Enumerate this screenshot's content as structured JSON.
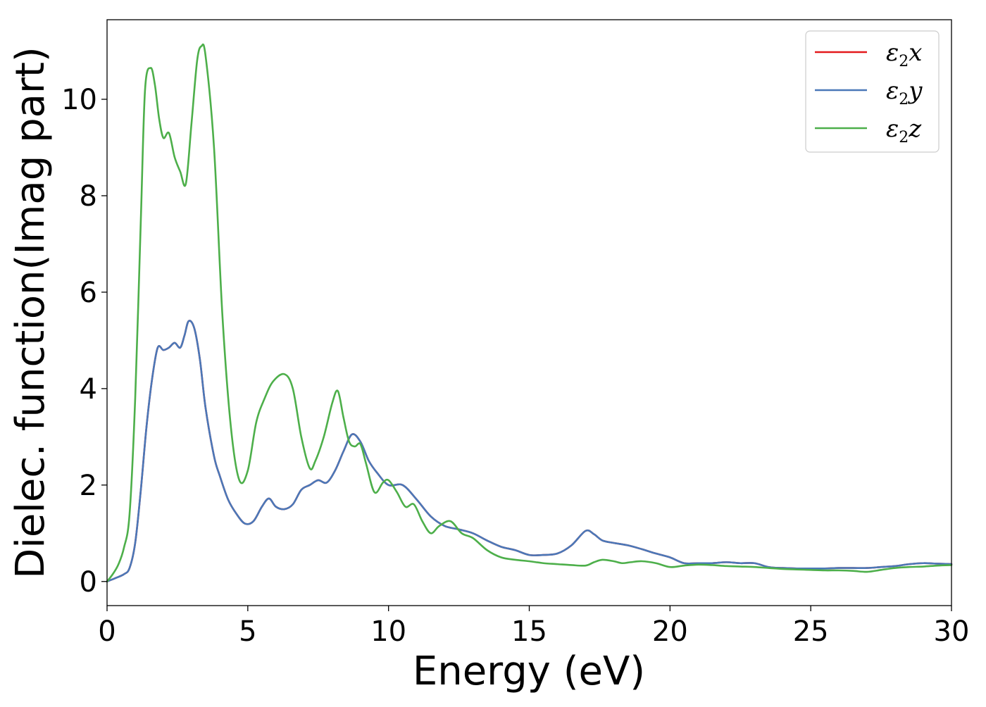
{
  "chart_data": {
    "type": "line",
    "xlabel": "Energy (eV)",
    "ylabel": "Dielec. function(Imag part)",
    "xlim": [
      0,
      30
    ],
    "ylim": [
      -0.5,
      11.65
    ],
    "xticks": [
      0,
      5,
      10,
      15,
      20,
      25,
      30
    ],
    "yticks": [
      0,
      2,
      4,
      6,
      8,
      10
    ],
    "grid": false,
    "legend_position": "top-right",
    "series": [
      {
        "name": "ε2x",
        "name_base": "ε",
        "name_sub": "2",
        "name_var": "x",
        "color": "#e41a1c",
        "x": [
          0,
          0.3,
          0.6,
          0.8,
          1.0,
          1.2,
          1.4,
          1.6,
          1.8,
          2.0,
          2.2,
          2.4,
          2.6,
          2.75,
          2.9,
          3.1,
          3.3,
          3.5,
          3.8,
          4.0,
          4.3,
          4.6,
          4.9,
          5.2,
          5.5,
          5.75,
          6.0,
          6.3,
          6.6,
          6.9,
          7.2,
          7.5,
          7.8,
          8.1,
          8.4,
          8.7,
          9.0,
          9.3,
          9.6,
          10.0,
          10.5,
          11.0,
          11.5,
          12.0,
          12.5,
          13.0,
          13.5,
          14.0,
          14.5,
          15.0,
          15.5,
          16.0,
          16.5,
          17.0,
          17.3,
          17.6,
          18.0,
          18.5,
          19.0,
          19.5,
          20.0,
          20.5,
          21.0,
          21.5,
          22.0,
          22.5,
          23.0,
          23.5,
          24.0,
          24.5,
          25.0,
          25.5,
          26.0,
          26.5,
          27.0,
          27.5,
          28.0,
          28.5,
          29.0,
          29.5,
          30.0
        ],
        "y": [
          0.0,
          0.07,
          0.15,
          0.28,
          0.8,
          1.9,
          3.2,
          4.2,
          4.85,
          4.8,
          4.85,
          4.95,
          4.85,
          5.1,
          5.4,
          5.25,
          4.6,
          3.6,
          2.6,
          2.2,
          1.7,
          1.4,
          1.2,
          1.25,
          1.55,
          1.72,
          1.55,
          1.5,
          1.6,
          1.9,
          2.0,
          2.1,
          2.05,
          2.3,
          2.7,
          3.05,
          2.9,
          2.5,
          2.25,
          2.0,
          2.0,
          1.7,
          1.35,
          1.15,
          1.08,
          1.0,
          0.85,
          0.72,
          0.65,
          0.55,
          0.55,
          0.58,
          0.75,
          1.05,
          0.98,
          0.85,
          0.8,
          0.75,
          0.67,
          0.58,
          0.5,
          0.38,
          0.38,
          0.38,
          0.4,
          0.38,
          0.38,
          0.3,
          0.28,
          0.27,
          0.27,
          0.27,
          0.28,
          0.28,
          0.28,
          0.3,
          0.32,
          0.36,
          0.38,
          0.37,
          0.36
        ]
      },
      {
        "name": "ε2y",
        "name_base": "ε",
        "name_sub": "2",
        "name_var": "y",
        "color": "#4a78b8",
        "x": [
          0,
          0.3,
          0.6,
          0.8,
          1.0,
          1.2,
          1.4,
          1.6,
          1.8,
          2.0,
          2.2,
          2.4,
          2.6,
          2.75,
          2.9,
          3.1,
          3.3,
          3.5,
          3.8,
          4.0,
          4.3,
          4.6,
          4.9,
          5.2,
          5.5,
          5.75,
          6.0,
          6.3,
          6.6,
          6.9,
          7.2,
          7.5,
          7.8,
          8.1,
          8.4,
          8.7,
          9.0,
          9.3,
          9.6,
          10.0,
          10.5,
          11.0,
          11.5,
          12.0,
          12.5,
          13.0,
          13.5,
          14.0,
          14.5,
          15.0,
          15.5,
          16.0,
          16.5,
          17.0,
          17.3,
          17.6,
          18.0,
          18.5,
          19.0,
          19.5,
          20.0,
          20.5,
          21.0,
          21.5,
          22.0,
          22.5,
          23.0,
          23.5,
          24.0,
          24.5,
          25.0,
          25.5,
          26.0,
          26.5,
          27.0,
          27.5,
          28.0,
          28.5,
          29.0,
          29.5,
          30.0
        ],
        "y": [
          0.0,
          0.07,
          0.15,
          0.28,
          0.8,
          1.9,
          3.2,
          4.2,
          4.85,
          4.8,
          4.85,
          4.95,
          4.85,
          5.1,
          5.4,
          5.25,
          4.6,
          3.6,
          2.6,
          2.2,
          1.7,
          1.4,
          1.2,
          1.25,
          1.55,
          1.72,
          1.55,
          1.5,
          1.6,
          1.9,
          2.0,
          2.1,
          2.05,
          2.3,
          2.7,
          3.05,
          2.9,
          2.5,
          2.25,
          2.0,
          2.0,
          1.7,
          1.35,
          1.15,
          1.08,
          1.0,
          0.85,
          0.72,
          0.65,
          0.55,
          0.55,
          0.58,
          0.75,
          1.05,
          0.98,
          0.85,
          0.8,
          0.75,
          0.67,
          0.58,
          0.5,
          0.38,
          0.38,
          0.38,
          0.4,
          0.38,
          0.38,
          0.3,
          0.28,
          0.27,
          0.27,
          0.27,
          0.28,
          0.28,
          0.28,
          0.3,
          0.32,
          0.36,
          0.38,
          0.37,
          0.36
        ]
      },
      {
        "name": "ε2z",
        "name_base": "ε",
        "name_sub": "2",
        "name_var": "z",
        "color": "#4daf4a",
        "x": [
          0,
          0.2,
          0.4,
          0.6,
          0.8,
          1.0,
          1.2,
          1.35,
          1.55,
          1.7,
          1.85,
          2.0,
          2.2,
          2.4,
          2.6,
          2.8,
          3.0,
          3.2,
          3.35,
          3.5,
          3.8,
          4.1,
          4.4,
          4.7,
          5.0,
          5.3,
          5.6,
          5.9,
          6.3,
          6.6,
          6.9,
          7.2,
          7.4,
          7.7,
          8.0,
          8.2,
          8.4,
          8.6,
          8.8,
          9.0,
          9.2,
          9.5,
          9.8,
          10.0,
          10.3,
          10.6,
          10.9,
          11.2,
          11.5,
          11.8,
          12.2,
          12.6,
          13.0,
          13.5,
          14.0,
          14.5,
          15.0,
          15.5,
          16.0,
          16.5,
          17.0,
          17.3,
          17.6,
          18.0,
          18.3,
          18.6,
          19.0,
          19.5,
          20.0,
          20.5,
          21.0,
          21.5,
          22.0,
          22.5,
          23.0,
          23.5,
          24.0,
          24.5,
          25.0,
          25.5,
          26.0,
          26.5,
          27.0,
          27.5,
          28.0,
          28.5,
          29.0,
          29.5,
          30.0
        ],
        "y": [
          0.0,
          0.15,
          0.35,
          0.7,
          1.4,
          3.8,
          7.5,
          10.2,
          10.65,
          10.3,
          9.6,
          9.2,
          9.3,
          8.8,
          8.5,
          8.25,
          9.5,
          10.8,
          11.1,
          10.9,
          9.0,
          5.5,
          3.2,
          2.1,
          2.3,
          3.3,
          3.8,
          4.15,
          4.3,
          4.0,
          3.0,
          2.35,
          2.5,
          3.0,
          3.7,
          3.95,
          3.4,
          2.9,
          2.8,
          2.85,
          2.45,
          1.85,
          2.05,
          2.1,
          1.85,
          1.55,
          1.6,
          1.25,
          1.0,
          1.15,
          1.25,
          1.0,
          0.9,
          0.65,
          0.5,
          0.45,
          0.42,
          0.38,
          0.36,
          0.34,
          0.33,
          0.4,
          0.45,
          0.42,
          0.38,
          0.4,
          0.42,
          0.38,
          0.3,
          0.33,
          0.35,
          0.34,
          0.32,
          0.31,
          0.3,
          0.28,
          0.26,
          0.25,
          0.24,
          0.23,
          0.23,
          0.22,
          0.2,
          0.24,
          0.28,
          0.3,
          0.31,
          0.33,
          0.34
        ]
      }
    ]
  }
}
